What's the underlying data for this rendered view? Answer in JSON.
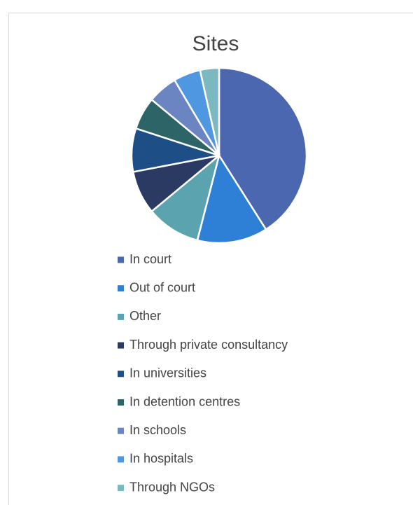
{
  "chart_data": {
    "type": "pie",
    "title": "Sites",
    "categories": [
      "In court",
      "Out of court",
      "Other",
      "Through private consultancy",
      "In universities",
      "In detention centres",
      "In schools",
      "In hospitals",
      "Through NGOs"
    ],
    "values": [
      41,
      13,
      10,
      8,
      8,
      6,
      5.5,
      5,
      3.5
    ],
    "colors": [
      "#4a67b0",
      "#2e7fd6",
      "#5ba3ae",
      "#2b3a63",
      "#1d4e85",
      "#2d6468",
      "#6b84c2",
      "#4f97e0",
      "#7cb8c0"
    ],
    "legend": "bottom"
  }
}
